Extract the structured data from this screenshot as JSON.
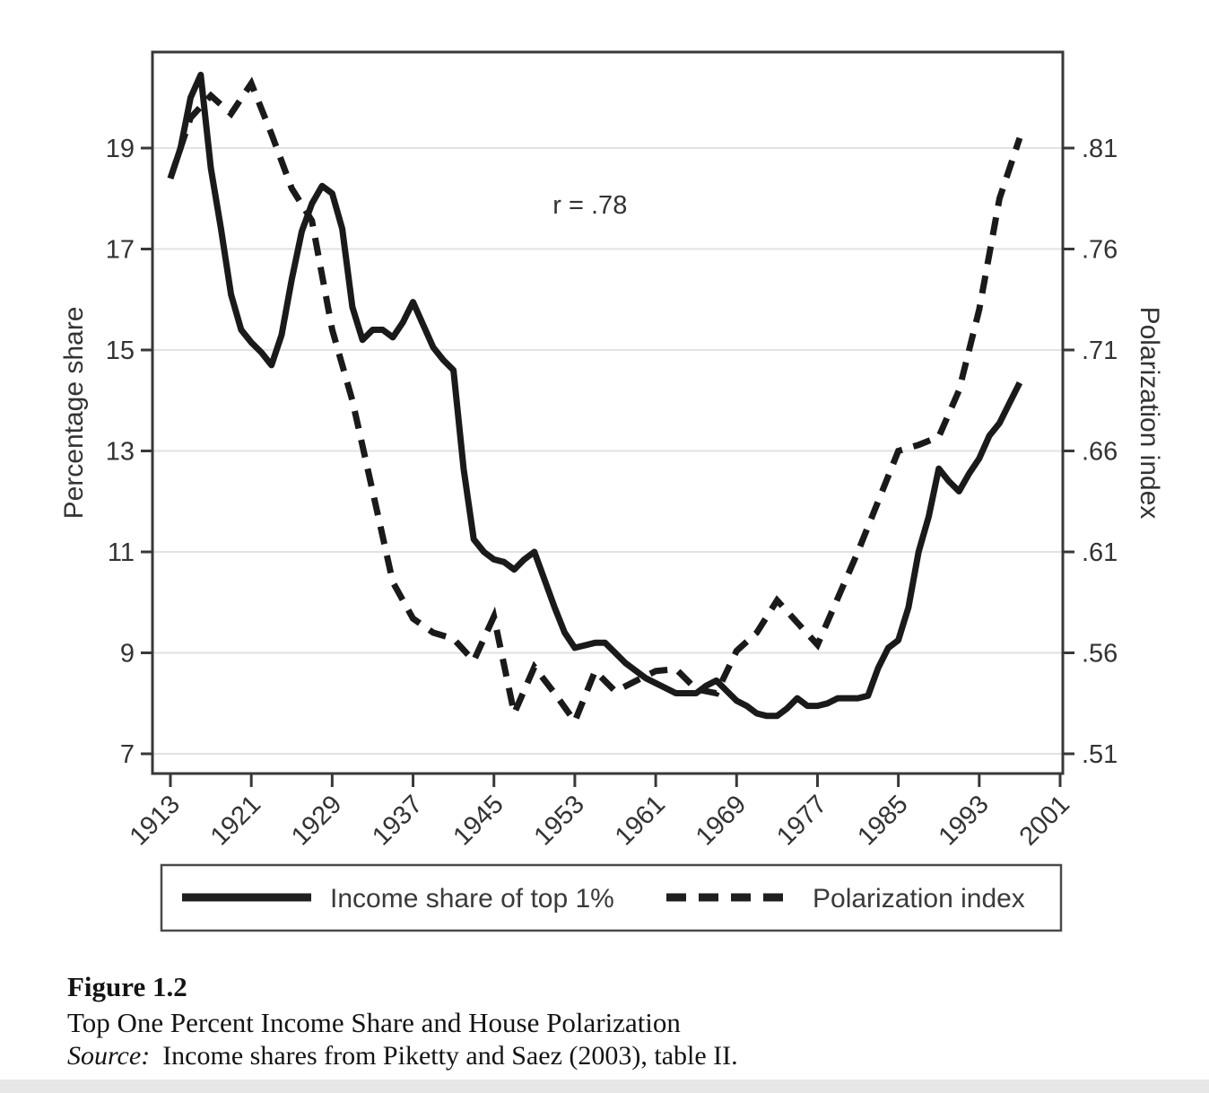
{
  "figure": {
    "annotation": {
      "text": "r = .78",
      "x_year": 1954.5,
      "y_value": 17.7
    },
    "left_axis": {
      "title": "Percentage share"
    },
    "right_axis": {
      "title": "Polarization index"
    },
    "legend": {
      "income_label": "Income share of top 1%",
      "polarization_label": "Polarization index"
    }
  },
  "caption": {
    "figure_label": "Figure 1.2",
    "title": "Top One Percent Income Share and House Polarization",
    "source_label": "Source:",
    "source_text": "Income shares from Piketty and Saez (2003), table II."
  },
  "chart_data": {
    "type": "line",
    "title": "",
    "annotation": "r = .78",
    "grid": "horizontal",
    "legend_position": "bottom",
    "xlim": [
      1911.2,
      2001.3
    ],
    "x_ticks": [
      1913,
      1921,
      1929,
      1937,
      1945,
      1953,
      1961,
      1969,
      1977,
      1985,
      1993,
      2001
    ],
    "y_left": {
      "label": "Percentage share",
      "ticks": [
        19,
        17,
        15,
        13,
        11,
        9,
        7
      ],
      "ylim": [
        6.6,
        20.9
      ]
    },
    "y_right": {
      "label": "Polarization index",
      "ticks": [
        ".81",
        ".76",
        ".71",
        ".66",
        ".61",
        ".56",
        ".51"
      ],
      "tick_values": [
        0.81,
        0.76,
        0.71,
        0.66,
        0.61,
        0.56,
        0.51
      ],
      "ylim": [
        0.5,
        0.857
      ]
    },
    "series": [
      {
        "name": "Income share of top 1%",
        "axis": "left",
        "style": "solid",
        "x_start": 1913,
        "x_step": 1,
        "x_end": 1997,
        "values": [
          18.4,
          19.0,
          20.0,
          20.45,
          18.6,
          17.4,
          16.1,
          15.4,
          15.15,
          14.95,
          14.7,
          15.3,
          16.4,
          17.35,
          17.9,
          18.25,
          18.1,
          17.4,
          15.85,
          15.2,
          15.4,
          15.4,
          15.25,
          15.55,
          15.95,
          15.5,
          15.05,
          14.8,
          14.6,
          12.65,
          11.25,
          11.0,
          10.85,
          10.8,
          10.65,
          10.85,
          11.0,
          10.45,
          9.9,
          9.4,
          9.1,
          9.15,
          9.2,
          9.2,
          9.0,
          8.8,
          8.65,
          8.5,
          8.4,
          8.3,
          8.2,
          8.2,
          8.2,
          8.35,
          8.45,
          8.25,
          8.05,
          7.95,
          7.8,
          7.75,
          7.75,
          7.9,
          8.1,
          7.95,
          7.95,
          8.0,
          8.1,
          8.1,
          8.1,
          8.15,
          8.7,
          9.1,
          9.25,
          9.9,
          11.0,
          11.7,
          12.65,
          12.4,
          12.2,
          12.55,
          12.85,
          13.3,
          13.55,
          13.95,
          14.35
        ]
      },
      {
        "name": "Polarization index",
        "axis": "right",
        "style": "dashed",
        "x_start": 1913,
        "x_step": 2,
        "x_end": 1997,
        "values": [
          0.795,
          0.825,
          0.836,
          0.827,
          0.842,
          0.817,
          0.79,
          0.774,
          0.72,
          0.685,
          0.64,
          0.595,
          0.577,
          0.57,
          0.567,
          0.556,
          0.578,
          0.53,
          0.553,
          0.54,
          0.526,
          0.551,
          0.541,
          0.546,
          0.551,
          0.552,
          0.542,
          0.54,
          0.561,
          0.57,
          0.586,
          0.575,
          0.564,
          0.587,
          0.61,
          0.635,
          0.66,
          0.663,
          0.667,
          0.69,
          0.73,
          0.785,
          0.815
        ]
      }
    ]
  }
}
